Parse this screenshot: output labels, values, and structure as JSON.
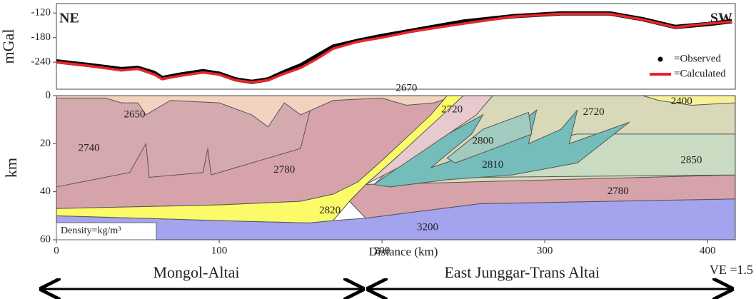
{
  "chart_data": [
    {
      "type": "line",
      "y_label": "mGal",
      "left_label": "NE",
      "right_label": "SW",
      "xlim": [
        0,
        417
      ],
      "ylim": [
        -306,
        -97
      ],
      "yticks": [
        -120,
        -180,
        -240
      ],
      "x": [
        0,
        20,
        40,
        50,
        60,
        65,
        75,
        90,
        100,
        110,
        120,
        130,
        140,
        150,
        160,
        170,
        185,
        200,
        220,
        250,
        280,
        310,
        340,
        360,
        380,
        400,
        415
      ],
      "series": [
        {
          "name": "=Observed",
          "color": "#000000",
          "marker": "dot",
          "values": [
            -238,
            -247,
            -257,
            -254,
            -266,
            -279,
            -271,
            -262,
            -268,
            -282,
            -288,
            -282,
            -264,
            -248,
            -225,
            -202,
            -188,
            -176,
            -162,
            -141,
            -128,
            -121,
            -121,
            -135,
            -154,
            -147,
            -140
          ]
        },
        {
          "name": "=Calculated",
          "color": "#e8262a",
          "marker": "line",
          "values": [
            -240,
            -249,
            -260,
            -256,
            -270,
            -281,
            -274,
            -265,
            -270,
            -284,
            -289,
            -284,
            -268,
            -254,
            -232,
            -207,
            -190,
            -180,
            -164,
            -146,
            -129,
            -122,
            -122,
            -136,
            -155,
            -146,
            -141
          ]
        }
      ]
    },
    {
      "type": "section",
      "x_label": "Distance (km)",
      "y_label": "km",
      "xlim": [
        0,
        417
      ],
      "ylim": [
        60,
        0
      ],
      "xticks": [
        0,
        100,
        200,
        300,
        400
      ],
      "yticks": [
        0,
        20,
        40,
        60
      ],
      "note": "Density=kg/m³",
      "regions": [
        "Mongol-Altai",
        "East Junggar-Trans Altai"
      ],
      "ve": "VE =1.5",
      "bodies": [
        {
          "label": "3200",
          "color": "#a3a3ee",
          "label_x": 228,
          "label_y": 55,
          "x": [
            0,
            100,
            155,
            170,
            190,
            260,
            417,
            417,
            0
          ],
          "y": [
            50,
            52,
            53,
            52,
            51,
            45,
            43,
            60,
            60
          ]
        },
        {
          "label": "2780",
          "color": "#d7a3ab",
          "label_x": 140,
          "label_y": 31,
          "x": [
            0,
            245,
            190,
            170,
            150,
            100,
            0
          ],
          "y": [
            0,
            0,
            36,
            41,
            44,
            45.5,
            47
          ]
        },
        {
          "label": "2740",
          "color": "#d5aaae",
          "label_x": 20,
          "label_y": 22,
          "x": [
            0,
            158,
            150,
            95,
            93,
            90,
            57,
            55,
            45,
            0
          ],
          "y": [
            0,
            0,
            22,
            33,
            22,
            32,
            34,
            20,
            32,
            38
          ]
        },
        {
          "label": "2650",
          "color": "#f1d3c0",
          "label_x": 48,
          "label_y": 8,
          "x": [
            0,
            245,
            232,
            215,
            200,
            170,
            150,
            140,
            130,
            120,
            100,
            70,
            60,
            55,
            50,
            40,
            30,
            0
          ],
          "y": [
            0,
            0,
            3,
            4,
            1,
            2,
            8,
            3,
            13,
            8,
            3,
            2,
            6,
            8,
            3,
            3,
            1,
            1
          ]
        },
        {
          "label": "2780",
          "color": "#d7a3ab",
          "label_x": 345,
          "label_y": 40,
          "x": [
            190,
            240,
            290,
            417,
            417,
            260,
            190,
            180
          ],
          "y": [
            37,
            35,
            34,
            33,
            43,
            45,
            51,
            44
          ]
        },
        {
          "label": "2720",
          "color": "#d9d8b9",
          "label_x": 330,
          "label_y": 7,
          "x": [
            255,
            417,
            417,
            195
          ],
          "y": [
            0,
            0,
            33,
            37
          ]
        },
        {
          "label": "2850",
          "color": "#c9dcc2",
          "label_x": 390,
          "label_y": 27,
          "x": [
            320,
            417,
            417,
            260,
            240,
            290
          ],
          "y": [
            16,
            16,
            33,
            34,
            34,
            20
          ]
        },
        {
          "label": "2810",
          "color": "#74bdbb",
          "label_x": 268,
          "label_y": 29,
          "x": [
            195,
            235,
            262,
            255,
            230,
            265,
            295,
            290,
            310,
            320,
            315,
            340,
            352,
            320,
            280,
            240,
            205
          ],
          "y": [
            37,
            18,
            8,
            16,
            30,
            22,
            6,
            20,
            14,
            6,
            20,
            14,
            11,
            28,
            33,
            35,
            38
          ]
        },
        {
          "label": "2800",
          "color": "#a2cbbf",
          "label_x": 262,
          "label_y": 19,
          "x": [
            240,
            262,
            290,
            292,
            265,
            245
          ],
          "y": [
            26,
            14,
            7,
            16,
            23,
            28
          ]
        },
        {
          "label": "2720",
          "color": "#e8c9cd",
          "label_x": 243,
          "label_y": 6,
          "x": [
            240,
            268,
            258,
            210,
            190,
            210
          ],
          "y": [
            0,
            0,
            8,
            30,
            37,
            25
          ]
        },
        {
          "label": "2820",
          "color": "#fbfb6a",
          "label_x": 168,
          "label_y": 48,
          "x": [
            0,
            100,
            150,
            170,
            185,
            200,
            230,
            240,
            250,
            210,
            190,
            180,
            170,
            155,
            100,
            0
          ],
          "y": [
            47,
            45.5,
            44,
            41,
            36,
            27,
            8,
            0,
            0,
            25,
            37,
            44,
            52,
            53,
            52,
            50
          ]
        },
        {
          "label": "2400",
          "color": "#f8f19a",
          "label_x": 384,
          "label_y": 2.5,
          "x": [
            360,
            417,
            417,
            390,
            370
          ],
          "y": [
            0,
            0,
            3,
            4,
            2
          ]
        },
        {
          "label": "2670",
          "color": "#f1d3c0",
          "label_x": 215,
          "label_y": -3,
          "x": [
            205,
            215
          ],
          "y": [
            0,
            0
          ]
        }
      ]
    }
  ]
}
